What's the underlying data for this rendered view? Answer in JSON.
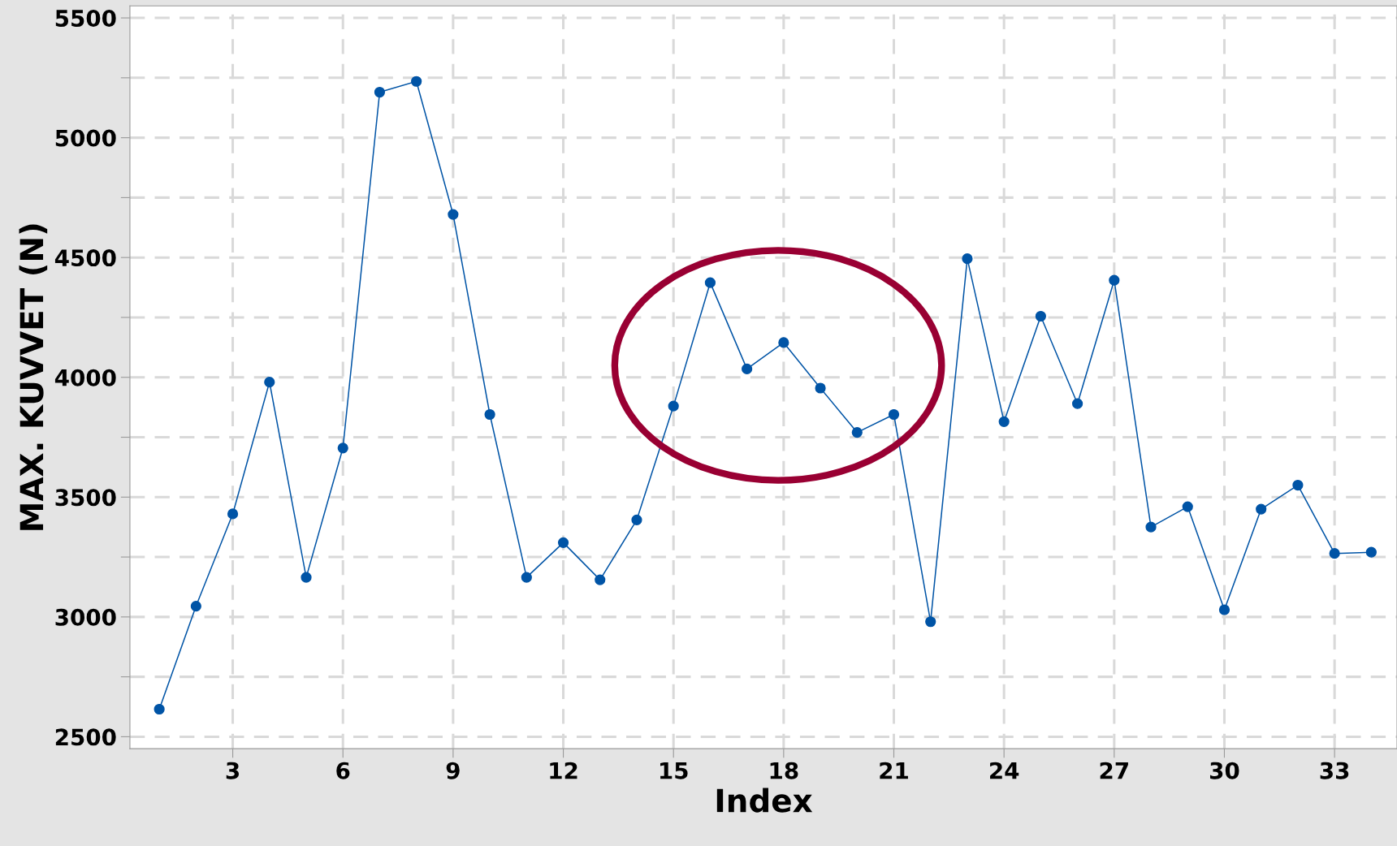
{
  "chart_data": {
    "type": "line",
    "xlabel": "Index",
    "ylabel": "MAX. KUVVET (N)",
    "x": [
      1,
      2,
      3,
      4,
      5,
      6,
      7,
      8,
      9,
      10,
      11,
      12,
      13,
      14,
      15,
      16,
      17,
      18,
      19,
      20,
      21,
      22,
      23,
      24,
      25,
      26,
      27,
      28,
      29,
      30,
      31,
      32,
      33,
      34
    ],
    "series": [
      {
        "color": "#0054a6",
        "values": [
          2615,
          3045,
          3430,
          3980,
          3165,
          3705,
          5190,
          5235,
          4680,
          3845,
          3165,
          3310,
          3155,
          3405,
          3880,
          4395,
          4035,
          4145,
          3955,
          3770,
          3845,
          2980,
          4495,
          3815,
          4255,
          3890,
          4405,
          3375,
          3460,
          3030,
          3450,
          3550,
          3265,
          3270
        ]
      }
    ],
    "xlim": [
      0.2,
      34.7
    ],
    "ylim": [
      2450,
      5550
    ],
    "xticks": [
      3,
      6,
      9,
      12,
      15,
      18,
      21,
      24,
      27,
      30,
      33
    ],
    "yticks": [
      2500,
      {
        "value": 2750,
        "label": null
      },
      3000,
      {
        "value": 3250,
        "label": null
      },
      3500,
      {
        "value": 3750,
        "label": null
      },
      4000,
      {
        "value": 4250,
        "label": null
      },
      4500,
      {
        "value": 4750,
        "label": null
      },
      5000,
      {
        "value": 5250,
        "label": null
      },
      5500
    ],
    "grid": true,
    "marker": "circle",
    "line_style": "solid"
  }
}
